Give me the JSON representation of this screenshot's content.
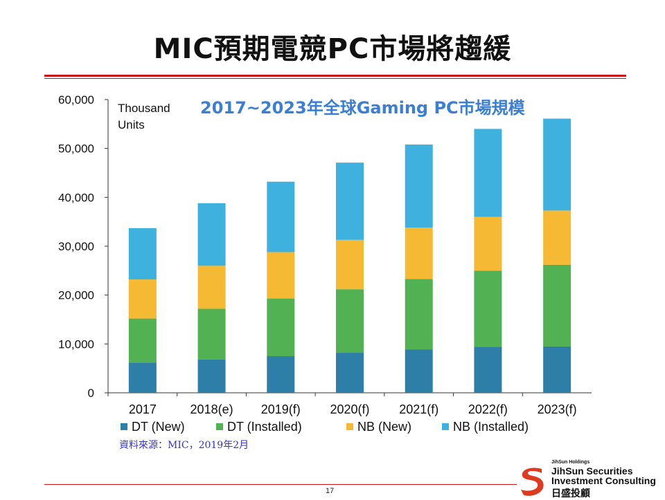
{
  "slide": {
    "title": "MIC預期電競PC市場將趨緩",
    "source_note": "資料來源：MIC，2019年2月",
    "page_number": "17",
    "logo": {
      "holdings": "JihSun Holdings",
      "line1": "JihSun Securities",
      "line2": "Investment Consulting",
      "chinese": "日盛投顧"
    }
  },
  "colors": {
    "title_rule": "#cc1111",
    "dt_new": "#2e7fa8",
    "dt_installed": "#52b152",
    "nb_new": "#f6b933",
    "nb_installed": "#3fb1df",
    "chart_title": "#3a7fd5",
    "logo_red": "#e03a1e",
    "logo_orange": "#f5a623"
  },
  "chart_data": {
    "type": "bar",
    "stacked": true,
    "title": "2017~2023年全球Gaming PC市場規模",
    "unit_label": [
      "Thousand",
      "Units"
    ],
    "categories": [
      "2017",
      "2018(e)",
      "2019(f)",
      "2020(f)",
      "2021(f)",
      "2022(f)",
      "2023(f)"
    ],
    "series": [
      {
        "name": "DT (New)",
        "color_key": "dt_new",
        "values": [
          6200,
          6800,
          7500,
          8200,
          8900,
          9400,
          9500
        ]
      },
      {
        "name": "DT (Installed)",
        "color_key": "dt_installed",
        "values": [
          9000,
          10400,
          11800,
          13000,
          14400,
          15600,
          16700
        ]
      },
      {
        "name": "NB (New)",
        "color_key": "nb_new",
        "values": [
          8000,
          8800,
          9500,
          10100,
          10500,
          11000,
          11100
        ]
      },
      {
        "name": "NB (Installed)",
        "color_key": "nb_installed",
        "values": [
          10500,
          12800,
          14400,
          15800,
          17000,
          18000,
          18800
        ]
      }
    ],
    "y_ticks": [
      "0",
      "10,000",
      "20,000",
      "30,000",
      "40,000",
      "50,000",
      "60,000"
    ],
    "ylim": [
      0,
      60000
    ],
    "xlabel": "",
    "ylabel": "Thousand Units",
    "legend_position": "bottom"
  }
}
